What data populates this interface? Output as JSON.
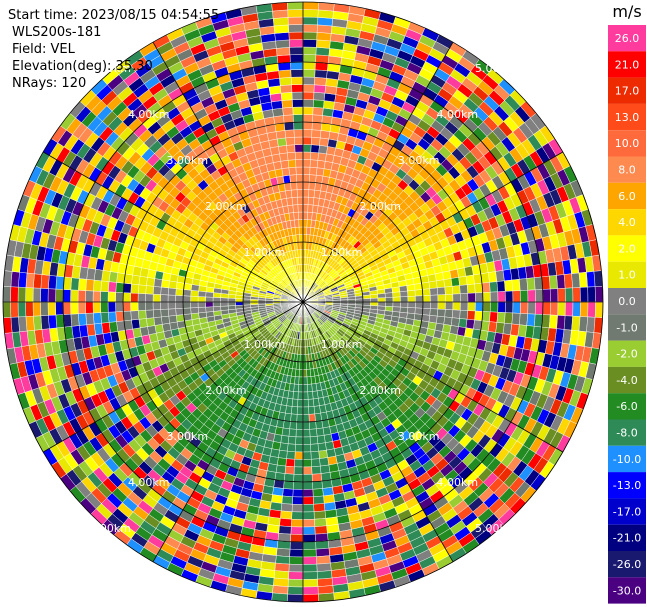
{
  "header": {
    "lines": [
      "Start time: 2023/08/15 04:54:55",
      "WLS200s-181",
      "Field: VEL",
      "Elevation(deg): 35.30",
      "NRays: 120"
    ]
  },
  "rings": [
    "1.00km",
    "2.00km",
    "3.00km",
    "4.00km",
    "5.00km"
  ],
  "colorbar": {
    "unit": "m/s",
    "bins": [
      {
        "value": 26,
        "label": "26.0",
        "color": "#ff3c9e"
      },
      {
        "value": 21,
        "label": "21.0",
        "color": "#ff0000"
      },
      {
        "value": 17,
        "label": "17.0",
        "color": "#ee2a00"
      },
      {
        "value": 13,
        "label": "13.0",
        "color": "#ff4a1a"
      },
      {
        "value": 10,
        "label": "10.0",
        "color": "#ff6a3d"
      },
      {
        "value": 8,
        "label": "8.0",
        "color": "#ff8a50"
      },
      {
        "value": 6,
        "label": "6.0",
        "color": "#ffa500"
      },
      {
        "value": 4,
        "label": "4.0",
        "color": "#ffd700"
      },
      {
        "value": 2,
        "label": "2.0",
        "color": "#ffff00"
      },
      {
        "value": 1,
        "label": "1.0",
        "color": "#e8e800"
      },
      {
        "value": 0,
        "label": "0.0",
        "color": "#808080"
      },
      {
        "value": -1,
        "label": "-1.0",
        "color": "#707a70"
      },
      {
        "value": -2,
        "label": "-2.0",
        "color": "#9acd32"
      },
      {
        "value": -4,
        "label": "-4.0",
        "color": "#6b8e23"
      },
      {
        "value": -6,
        "label": "-6.0",
        "color": "#228b22"
      },
      {
        "value": -8,
        "label": "-8.0",
        "color": "#2e8b57"
      },
      {
        "value": -10,
        "label": "-10.0",
        "color": "#1e90ff"
      },
      {
        "value": -13,
        "label": "-13.0",
        "color": "#0000ff"
      },
      {
        "value": -17,
        "label": "-17.0",
        "color": "#0000cd"
      },
      {
        "value": -21,
        "label": "-21.0",
        "color": "#000080"
      },
      {
        "value": -26,
        "label": "-26.0",
        "color": "#191970"
      },
      {
        "value": -30,
        "label": "-30.0",
        "color": "#4b0082"
      }
    ]
  }
}
